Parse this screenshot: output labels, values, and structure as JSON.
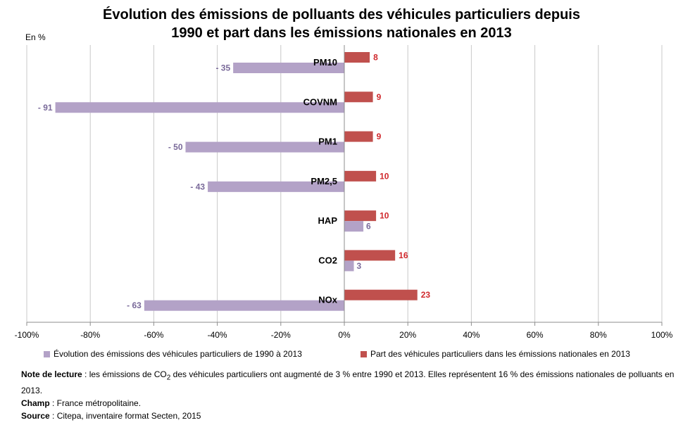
{
  "title_line1": "Évolution des émissions de polluants des véhicules particuliers depuis",
  "title_line2": "1990 et part dans les émissions nationales en 2013",
  "unit_label": "En %",
  "chart_data": {
    "type": "bar",
    "orientation": "horizontal",
    "categories": [
      "PM10",
      "COVNM",
      "PM1",
      "PM2,5",
      "HAP",
      "CO2",
      "NOx"
    ],
    "series": [
      {
        "name": "Part des véhicules particuliers dans les émissions nationales en 2013",
        "values": [
          8,
          9,
          9,
          10,
          10,
          16,
          23
        ],
        "labels": [
          "8",
          "9",
          "9",
          "10",
          "10",
          "16",
          "23"
        ],
        "color": "#C0504D",
        "label_color": "#D0282C"
      },
      {
        "name": "Évolution des émissions des véhicules particuliers de 1990 à 2013",
        "values": [
          -35,
          -91,
          -50,
          -43,
          6,
          3,
          -63
        ],
        "labels": [
          "- 35",
          "- 91",
          "- 50",
          "- 43",
          "6",
          "3",
          "- 63"
        ],
        "color": "#B3A2C7",
        "label_color": "#7A6A9A"
      }
    ],
    "xlim": [
      -100,
      100
    ],
    "xticks": [
      -100,
      -80,
      -60,
      -40,
      -20,
      0,
      20,
      40,
      60,
      80,
      100
    ],
    "xtick_labels": [
      "-100%",
      "-80%",
      "-60%",
      "-40%",
      "-20%",
      "0%",
      "20%",
      "40%",
      "60%",
      "80%",
      "100%"
    ],
    "grid": true,
    "legend_position": "bottom"
  },
  "legend": {
    "series1": "Évolution des émissions des véhicules particuliers de 1990 à 2013",
    "series2": "Part des véhicules particuliers dans les émissions nationales en 2013"
  },
  "notes": {
    "lecture_label": "Note de lecture",
    "lecture_text_a": " : les émissions de CO",
    "lecture_sub": "2",
    "lecture_text_b": " des véhicules particuliers ont augmenté de 3 % entre 1990 et 2013. Elles représentent 16 % des émissions nationales de polluants en 2013.",
    "champ_label": "Champ",
    "champ_text": " : France métropolitaine.",
    "source_label": "Source",
    "source_text": " : Citepa, inventaire format Secten, 2015"
  }
}
